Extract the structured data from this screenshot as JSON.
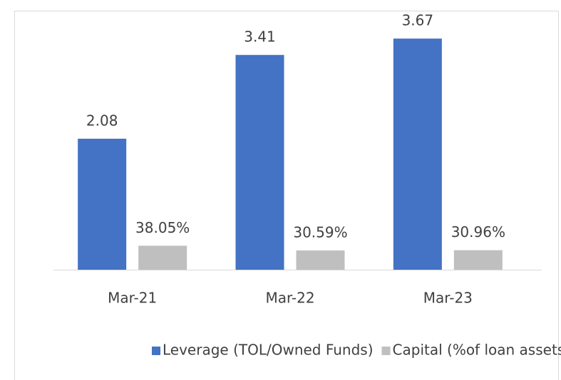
{
  "chart_data": {
    "type": "bar",
    "categories": [
      "Mar-21",
      "Mar-22",
      "Mar-23"
    ],
    "series": [
      {
        "name": "Leverage (TOL/Owned Funds)",
        "color": "#4472c4",
        "values": [
          2.08,
          3.41,
          3.67
        ]
      },
      {
        "name": "Capital (%of loan assets)",
        "color": "#bfbfbf",
        "values": [
          0.3805,
          0.3059,
          0.3096
        ],
        "value_labels": [
          "38.05%",
          "30.59%",
          "30.96%"
        ]
      }
    ],
    "ylim": [
      0,
      4
    ],
    "legend": "bottom"
  }
}
